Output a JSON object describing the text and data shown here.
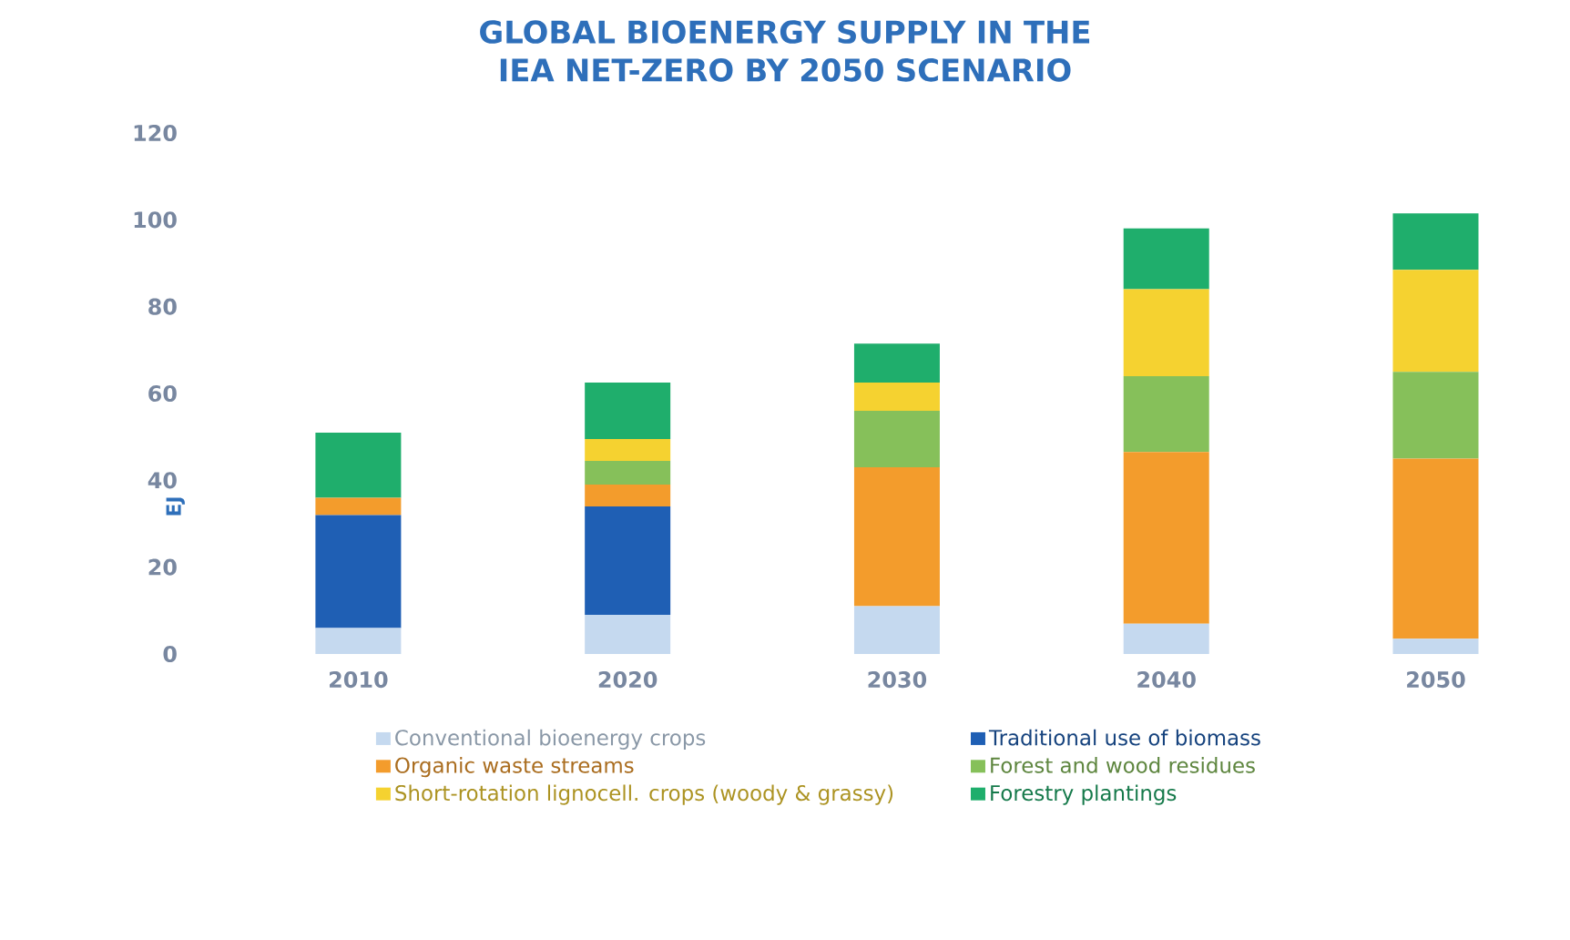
{
  "chart_data": {
    "type": "bar",
    "title": "GLOBAL BIOENERGY SUPPLY IN THE IEA NET-ZERO BY 2050 SCENARIO",
    "ylabel": "EJ",
    "categories": [
      "2010",
      "2020",
      "2030",
      "2040",
      "2050"
    ],
    "stacked": true,
    "ylim": [
      0,
      120
    ],
    "yticks": [
      0,
      20,
      40,
      60,
      80,
      100,
      120
    ],
    "legend": "bottom",
    "series": [
      {
        "name": "Conventional bioenergy crops",
        "color": "#c5d9ef",
        "values": [
          6,
          9,
          11,
          7,
          3.5
        ]
      },
      {
        "name": "Traditional use of biomass",
        "color": "#1f5fb4",
        "values": [
          26,
          25,
          0,
          0,
          0
        ]
      },
      {
        "name": "Organic waste streams",
        "color": "#f39c2c",
        "values": [
          4,
          5,
          32,
          39.5,
          41.5
        ]
      },
      {
        "name": "Forest and wood residues",
        "color": "#86c05a",
        "values": [
          0,
          5.5,
          13,
          17.5,
          20
        ]
      },
      {
        "name": "Short-rotation lignocell. crops (woody & grassy)",
        "color": "#f5d230",
        "values": [
          0,
          5,
          6.5,
          20,
          23.5
        ]
      },
      {
        "name": "Forestry plantings",
        "color": "#1fae6c",
        "values": [
          15,
          13,
          9,
          14,
          13
        ]
      }
    ]
  }
}
